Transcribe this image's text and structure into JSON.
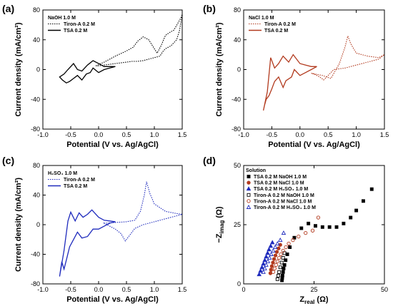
{
  "panels": [
    {
      "label": "(a)",
      "chart_data": {
        "type": "line",
        "xlabel": "Potential (V vs. Ag/AgCl)",
        "ylabel": "Current density (mA/cm²)",
        "xlim": [
          -1.0,
          1.5
        ],
        "ylim": [
          -80,
          80
        ],
        "xticks": [
          -1.0,
          -0.5,
          0.0,
          0.5,
          1.0,
          1.5
        ],
        "xtick_labels": [
          "-1.0",
          "-0.5",
          "0.0",
          "0.5",
          "1.0",
          "1.5"
        ],
        "yticks": [
          -80,
          -40,
          0,
          40,
          80
        ],
        "ytick_labels": [
          "-80",
          "-40",
          "0",
          "40",
          "80"
        ],
        "legend": {
          "title": "NaOH 1.0 M",
          "position": "top-left"
        },
        "series": [
          {
            "name": "Tiron-A 0.2 M",
            "color": "#000000",
            "dash": "dotted",
            "x": [
              -0.05,
              0.1,
              0.3,
              0.5,
              0.62,
              0.7,
              0.8,
              0.9,
              1.0,
              1.05,
              1.12,
              1.2,
              1.28,
              1.35,
              1.42,
              1.48,
              1.5,
              1.45,
              1.4,
              1.3,
              1.2,
              1.15,
              1.1,
              1.0,
              0.9,
              0.8,
              0.7,
              0.6,
              0.5,
              0.4,
              0.3,
              0.2,
              0.1,
              0.0,
              -0.05
            ],
            "y": [
              5,
              10,
              18,
              25,
              30,
              38,
              44,
              40,
              28,
              22,
              32,
              46,
              50,
              53,
              62,
              70,
              74,
              52,
              40,
              32,
              28,
              24,
              18,
              16,
              14,
              12,
              11,
              11,
              10,
              9,
              8,
              7,
              6,
              5,
              5
            ]
          },
          {
            "name": "TSA 0.2 M",
            "color": "#000000",
            "dash": "solid",
            "x": [
              -0.7,
              -0.62,
              -0.55,
              -0.45,
              -0.38,
              -0.3,
              -0.2,
              -0.1,
              0.0,
              0.1,
              0.2,
              0.3,
              0.2,
              0.1,
              0.0,
              -0.1,
              -0.15,
              -0.22,
              -0.3,
              -0.38,
              -0.45,
              -0.52,
              -0.58,
              -0.65,
              -0.7
            ],
            "y": [
              -10,
              -6,
              0,
              8,
              0,
              -2,
              6,
              12,
              8,
              4,
              4,
              4,
              2,
              0,
              -4,
              2,
              -4,
              -6,
              -14,
              -8,
              -12,
              -16,
              -18,
              -14,
              -10
            ]
          }
        ]
      }
    },
    {
      "label": "(b)",
      "chart_data": {
        "type": "line",
        "xlabel": "Potential (V vs. Ag/AgCl)",
        "ylabel": "Current density (mA/cm²)",
        "xlim": [
          -1.0,
          1.5
        ],
        "ylim": [
          -80,
          80
        ],
        "xticks": [
          -1.0,
          -0.5,
          0.0,
          0.5,
          1.0,
          1.5
        ],
        "xtick_labels": [
          "-1.0",
          "-0.5",
          "0.0",
          "0.5",
          "1.0",
          "1.5"
        ],
        "yticks": [
          -80,
          -40,
          0,
          40,
          80
        ],
        "ytick_labels": [
          "-80",
          "-40",
          "0",
          "40",
          "80"
        ],
        "legend": {
          "title": "NaCl 1.0 M",
          "position": "top-left"
        },
        "series": [
          {
            "name": "Tiron-A 0.2 M",
            "color": "#b23a1e",
            "dash": "dotted",
            "x": [
              0.2,
              0.4,
              0.55,
              0.7,
              0.8,
              0.85,
              0.9,
              1.0,
              1.2,
              1.4,
              1.5,
              1.4,
              1.2,
              1.0,
              0.8,
              0.6,
              0.5,
              0.42,
              0.35,
              0.25,
              0.2
            ],
            "y": [
              -5,
              -8,
              -12,
              8,
              30,
              45,
              35,
              22,
              18,
              16,
              20,
              14,
              10,
              6,
              2,
              0,
              -8,
              -14,
              -10,
              -6,
              -5
            ]
          },
          {
            "name": "TSA 0.2 M",
            "color": "#b23a1e",
            "dash": "solid",
            "x": [
              -0.65,
              -0.58,
              -0.52,
              -0.45,
              -0.38,
              -0.3,
              -0.2,
              -0.12,
              0.0,
              0.1,
              0.2,
              0.3,
              0.2,
              0.1,
              0.0,
              -0.1,
              -0.15,
              -0.25,
              -0.3,
              -0.38,
              -0.45,
              -0.5,
              -0.55,
              -0.6,
              -0.63,
              -0.65
            ],
            "y": [
              -55,
              -30,
              16,
              2,
              8,
              18,
              10,
              20,
              8,
              6,
              4,
              4,
              0,
              -4,
              -8,
              0,
              -10,
              -15,
              -24,
              -10,
              -16,
              -26,
              -35,
              -40,
              -48,
              -55
            ]
          }
        ]
      }
    },
    {
      "label": "(c)",
      "chart_data": {
        "type": "line",
        "xlabel": "Potential (V vs. Ag/AgCl)",
        "ylabel": "Current density (mA/cm²)",
        "xlim": [
          -1.0,
          1.5
        ],
        "ylim": [
          -80,
          80
        ],
        "xticks": [
          -1.0,
          -0.5,
          0.0,
          0.5,
          1.0,
          1.5
        ],
        "xtick_labels": [
          "-1.0",
          "-0.5",
          "0.0",
          "0.5",
          "1.0",
          "1.5"
        ],
        "yticks": [
          -80,
          -40,
          0,
          40,
          80
        ],
        "ytick_labels": [
          "-80",
          "-40",
          "0",
          "40",
          "80"
        ],
        "legend": {
          "title": "H₂SO₄ 1.0 M",
          "position": "top-left"
        },
        "series": [
          {
            "name": "Tiron-A 0.2 M",
            "color": "#1f2bbd",
            "dash": "dotted",
            "x": [
              0.1,
              0.3,
              0.5,
              0.65,
              0.75,
              0.82,
              0.86,
              0.92,
              1.0,
              1.2,
              1.4,
              1.5,
              1.4,
              1.2,
              1.0,
              0.8,
              0.65,
              0.55,
              0.48,
              0.4,
              0.3,
              0.2,
              0.1
            ],
            "y": [
              2,
              3,
              4,
              6,
              18,
              40,
              58,
              42,
              28,
              18,
              15,
              14,
              12,
              8,
              4,
              0,
              -5,
              -15,
              -22,
              -12,
              -6,
              -2,
              2
            ]
          },
          {
            "name": "TSA 0.2 M",
            "color": "#1f2bbd",
            "dash": "solid",
            "x": [
              -0.7,
              -0.62,
              -0.55,
              -0.5,
              -0.42,
              -0.35,
              -0.28,
              -0.2,
              -0.12,
              0.0,
              0.1,
              0.2,
              0.3,
              0.2,
              0.1,
              0.0,
              -0.1,
              -0.2,
              -0.3,
              -0.38,
              -0.45,
              -0.52,
              -0.58,
              -0.62,
              -0.66,
              -0.7
            ],
            "y": [
              -70,
              -35,
              5,
              17,
              5,
              16,
              10,
              14,
              20,
              10,
              6,
              5,
              4,
              2,
              -2,
              -6,
              -6,
              -16,
              -18,
              -10,
              -20,
              -30,
              -48,
              -60,
              -50,
              -70
            ]
          }
        ]
      }
    },
    {
      "label": "(d)",
      "chart_data": {
        "type": "scatter",
        "xlabel": "Z",
        "xlabel_sub": "real",
        "xlabel_unit": "(Ω)",
        "ylabel": "−Z",
        "ylabel_sub": "imag",
        "ylabel_unit": "(Ω)",
        "xlim": [
          0,
          50
        ],
        "ylim": [
          0,
          50
        ],
        "xticks": [
          0,
          25,
          50
        ],
        "xtick_labels": [
          "0",
          "25",
          "50"
        ],
        "yticks": [
          0,
          25,
          50
        ],
        "ytick_labels": [
          "0",
          "25",
          "50"
        ],
        "legend": {
          "title": "Solution",
          "position": "top-left"
        },
        "series": [
          {
            "name": "TSA 0.2 M NaOH 1.0 M",
            "marker": "square",
            "filled": true,
            "color": "#000000",
            "x": [
              13.6,
              13.7,
              13.8,
              14.0,
              14.2,
              14.5,
              14.9,
              15.5,
              16.4,
              18.0,
              20.5,
              23.0,
              25.5,
              28.0,
              30.5,
              33.0,
              35.5,
              38.0,
              40.0,
              42.5,
              45.5
            ],
            "y": [
              1.5,
              2.5,
              3.5,
              5,
              6.5,
              8,
              10,
              12.5,
              15.5,
              19.5,
              23.5,
              25.5,
              24.5,
              24.0,
              24.0,
              24.0,
              25.5,
              28.0,
              31.0,
              35.0,
              40.0
            ]
          },
          {
            "name": "TSA 0.2 M NaCl 1.0 M",
            "marker": "circle",
            "filled": true,
            "color": "#b23a1e",
            "x": [
              9.5,
              9.7,
              10.0,
              10.4,
              10.8,
              11.3,
              11.8,
              12.4,
              13.0
            ],
            "y": [
              4.5,
              6,
              7.5,
              9,
              10.5,
              12,
              13.5,
              15,
              16.5
            ]
          },
          {
            "name": "TSA 0.2 M H₂SO₄ 1.0 M",
            "marker": "triangle",
            "filled": true,
            "color": "#1f2bbd",
            "x": [
              5.5,
              6.0,
              6.5,
              7.0,
              7.5,
              8.0,
              8.5,
              9.0,
              9.6,
              10.2
            ],
            "y": [
              4,
              5.5,
              7,
              8.5,
              10,
              11.5,
              13,
              14.5,
              16,
              17.5
            ]
          },
          {
            "name": "Tiron-A 0.2 M NaOH 1.0 M",
            "marker": "square",
            "filled": false,
            "color": "#000000",
            "x": [
              12.0,
              12.3,
              12.6,
              13.0,
              13.5,
              14.0,
              14.5
            ],
            "y": [
              2,
              3.5,
              5,
              7,
              9,
              11,
              13
            ]
          },
          {
            "name": "Tiron-A 0.2 M NaCl 1.0 M",
            "marker": "circle",
            "filled": false,
            "color": "#b23a1e",
            "x": [
              10.5,
              11.0,
              11.5,
              12.0,
              12.6,
              13.2,
              14.0,
              15.0,
              16.0,
              17.5,
              19.5,
              22.0,
              24.5,
              26.5
            ],
            "y": [
              5,
              6.5,
              8,
              9.5,
              11,
              12.5,
              14,
              15.5,
              17,
              18.5,
              20,
              21.5,
              22.5,
              28.0
            ]
          },
          {
            "name": "Tiron-A 0.2 M H₂SO₄ 1.0 M",
            "marker": "triangle",
            "filled": false,
            "color": "#1f2bbd",
            "x": [
              7.0,
              7.5,
              8.0,
              8.6,
              9.2,
              9.8,
              10.5,
              11.2,
              12.0,
              13.0,
              14.2
            ],
            "y": [
              5,
              6.5,
              8,
              9.5,
              11,
              12.5,
              14,
              15.5,
              17,
              18.5,
              21.5
            ]
          }
        ]
      }
    }
  ]
}
